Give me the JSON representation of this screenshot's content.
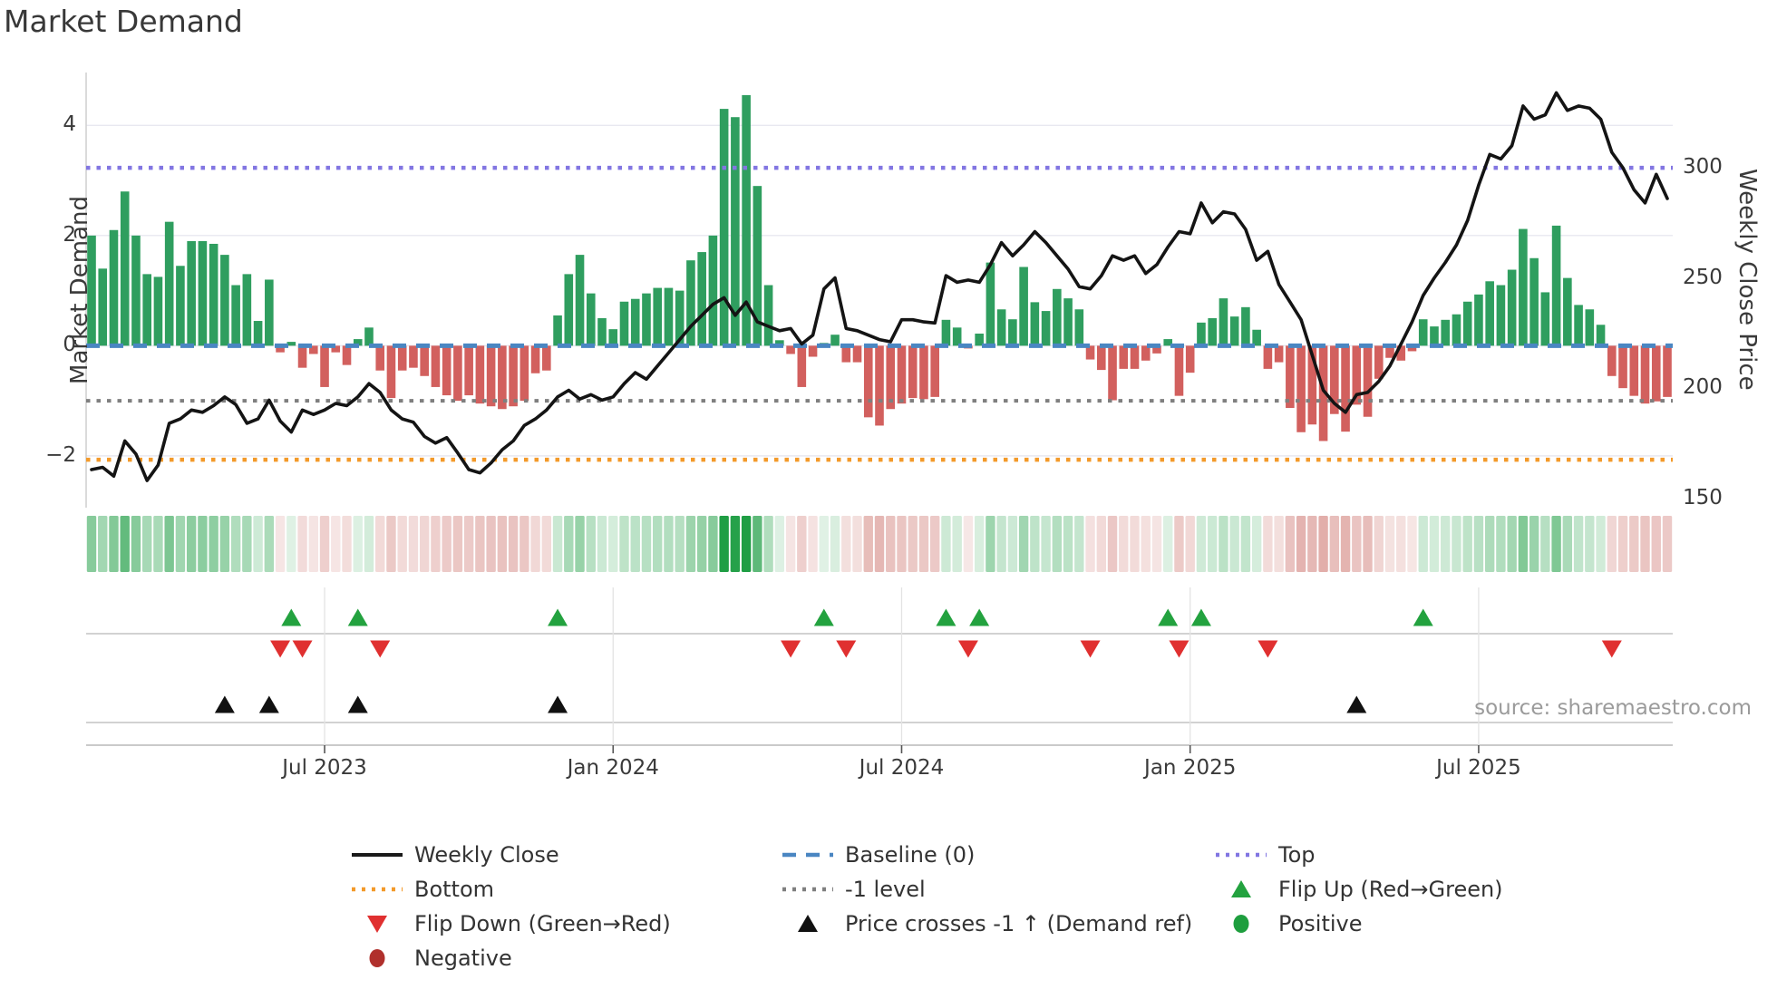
{
  "title": "Market Demand",
  "source_text": "source: sharemaestro.com",
  "chart_data": {
    "type": "bar",
    "subtype": "weekly demand bars + price line overlay + heatmap strip + event markers",
    "title": "Market Demand",
    "x_axis": {
      "tick_labels": [
        "Jul 2023",
        "Jan 2024",
        "Jul 2024",
        "Jan 2025",
        "Jul 2025"
      ],
      "tick_weeks": [
        21,
        47,
        73,
        99,
        125
      ],
      "n_weeks": 143,
      "grid": "vertical lines only in marker band"
    },
    "left_axis": {
      "label": "Market Demand",
      "tick_labels": [
        "4",
        "2",
        "0",
        "−2"
      ],
      "tick_values": [
        4,
        2,
        0,
        -2
      ],
      "min": -2.94,
      "max": 4.96
    },
    "right_axis": {
      "label": "Weekly Close Price",
      "tick_labels": [
        "300",
        "250",
        "200",
        "150"
      ],
      "tick_values": [
        300,
        250,
        200,
        150
      ],
      "min": 145.7,
      "max": 343.2
    },
    "ref_levels": {
      "top": 3.23,
      "baseline": 0,
      "minus1": -1,
      "bottom": -2.07
    },
    "series": [
      {
        "name": "Market Demand",
        "axis": "left",
        "style": "bar",
        "values": [
          2.0,
          1.4,
          2.1,
          2.8,
          2.0,
          1.3,
          1.25,
          2.25,
          1.45,
          1.9,
          1.9,
          1.85,
          1.65,
          1.1,
          1.3,
          0.45,
          1.2,
          -0.12,
          0.07,
          -0.4,
          -0.15,
          -0.75,
          -0.12,
          -0.35,
          0.12,
          0.33,
          -0.45,
          -0.95,
          -0.45,
          -0.4,
          -0.55,
          -0.75,
          -0.9,
          -1.0,
          -0.9,
          -1.05,
          -1.1,
          -1.15,
          -1.1,
          -1.0,
          -0.5,
          -0.45,
          0.55,
          1.3,
          1.65,
          0.95,
          0.5,
          0.3,
          0.8,
          0.85,
          0.95,
          1.05,
          1.05,
          1.0,
          1.55,
          1.7,
          2.0,
          4.3,
          4.15,
          4.55,
          2.9,
          1.1,
          0.1,
          -0.15,
          -0.75,
          -0.2,
          0.05,
          0.2,
          -0.3,
          -0.3,
          -1.3,
          -1.45,
          -1.15,
          -1.05,
          -0.95,
          -0.97,
          -0.93,
          0.47,
          0.33,
          -0.05,
          0.22,
          1.51,
          0.66,
          0.48,
          1.43,
          0.79,
          0.63,
          1.03,
          0.86,
          0.66,
          -0.25,
          -0.44,
          -0.99,
          -0.42,
          -0.42,
          -0.27,
          -0.14,
          0.12,
          -0.91,
          -0.49,
          0.42,
          0.5,
          0.86,
          0.53,
          0.7,
          0.29,
          -0.42,
          -0.3,
          -1.13,
          -1.57,
          -1.43,
          -1.73,
          -1.24,
          -1.56,
          -1.07,
          -1.29,
          -0.6,
          -0.22,
          -0.27,
          -0.1,
          0.48,
          0.35,
          0.47,
          0.57,
          0.8,
          0.93,
          1.17,
          1.1,
          1.38,
          2.12,
          1.59,
          0.97,
          2.18,
          1.23,
          0.74,
          0.66,
          0.38,
          -0.55,
          -0.77,
          -0.91,
          -1.05,
          -1.01,
          -0.93
        ]
      },
      {
        "name": "Weekly Close",
        "axis": "right",
        "style": "line",
        "values": [
          163,
          164,
          160,
          176,
          170,
          158,
          165,
          184,
          186,
          190,
          189,
          192,
          196,
          192.5,
          184,
          186,
          194.5,
          185,
          180,
          190,
          188,
          190,
          193,
          192,
          196,
          202,
          198,
          190,
          186,
          184.5,
          178,
          175,
          177.5,
          170.5,
          163,
          161.5,
          166,
          172,
          176,
          183,
          186,
          190,
          196,
          199,
          195,
          197,
          194.5,
          196,
          202,
          207,
          204,
          210,
          216,
          222,
          228,
          233,
          238,
          241,
          233,
          239,
          230,
          228,
          226,
          227,
          220,
          224,
          245,
          250,
          227,
          226,
          224,
          222,
          221,
          231,
          231,
          230,
          229.5,
          251,
          248,
          249,
          248,
          256,
          266,
          260,
          265,
          271,
          266,
          260,
          254,
          246,
          245,
          251,
          260,
          258,
          260,
          252,
          256,
          264,
          271,
          270,
          284,
          275,
          280,
          279,
          272,
          258,
          262,
          247,
          239,
          231,
          215,
          199,
          193,
          189,
          197,
          198,
          203,
          210,
          220,
          230,
          242,
          250,
          257,
          265,
          276,
          292,
          306,
          304,
          310,
          328,
          322,
          324,
          334,
          326,
          328,
          327,
          322,
          307,
          300,
          290,
          284,
          297,
          286
        ]
      }
    ],
    "heatmap_strip": "per-week cell tinted by sign and magnitude of Market Demand",
    "markers": {
      "flip_up_weeks": [
        18,
        24,
        42,
        66,
        77,
        80,
        97,
        100,
        120
      ],
      "flip_down_weeks": [
        17,
        19,
        26,
        63,
        68,
        79,
        90,
        98,
        106,
        137
      ],
      "price_cross_minus1_weeks": [
        12,
        16,
        24,
        42,
        114
      ]
    },
    "legend_position": "bottom, 3 columns"
  },
  "legend": {
    "items": [
      {
        "label": "Weekly Close",
        "swatch": "line-solid",
        "color": "#1a1a1a",
        "col": 0,
        "row": 0
      },
      {
        "label": "Baseline (0)",
        "swatch": "line-dash",
        "color": "#4a86c2",
        "col": 1,
        "row": 0
      },
      {
        "label": "Top",
        "swatch": "line-dots",
        "color": "#8276e2",
        "col": 2,
        "row": 0
      },
      {
        "label": "Bottom",
        "swatch": "line-dots",
        "color": "#f39a2a",
        "col": 0,
        "row": 1
      },
      {
        "label": "-1 level",
        "swatch": "line-dots",
        "color": "#7f7f7f",
        "col": 1,
        "row": 1
      },
      {
        "label": "Flip Up (Red→Green)",
        "swatch": "tri-up",
        "color": "#23a23f",
        "col": 2,
        "row": 1
      },
      {
        "label": "Flip Down (Green→Red)",
        "swatch": "tri-down",
        "color": "#e03030",
        "col": 0,
        "row": 2
      },
      {
        "label": "Price crosses -1 ↑ (Demand ref)",
        "swatch": "tri-up",
        "color": "#111111",
        "col": 1,
        "row": 2
      },
      {
        "label": "Positive",
        "swatch": "circle",
        "color": "#1e9e3e",
        "col": 2,
        "row": 2
      },
      {
        "label": "Negative",
        "swatch": "circle",
        "color": "#b0302c",
        "col": 0,
        "row": 3
      }
    ]
  },
  "colors": {
    "bar_positive": "#2f9e5f",
    "bar_negative": "#d2605e",
    "price_line": "#141414",
    "baseline": "#4a86c2",
    "top_line": "#8276e2",
    "bottom_line": "#f39a2a",
    "minus1_line": "#7f7f7f",
    "flip_up": "#23a23f",
    "flip_down": "#e03030",
    "price_cross": "#111111",
    "heat_green": [
      31,
      158,
      68
    ],
    "heat_red": [
      194,
      86,
      78
    ],
    "grid": "#e8e8f0",
    "band_line": "#c4c4c4",
    "text": "#3a3a3a"
  }
}
